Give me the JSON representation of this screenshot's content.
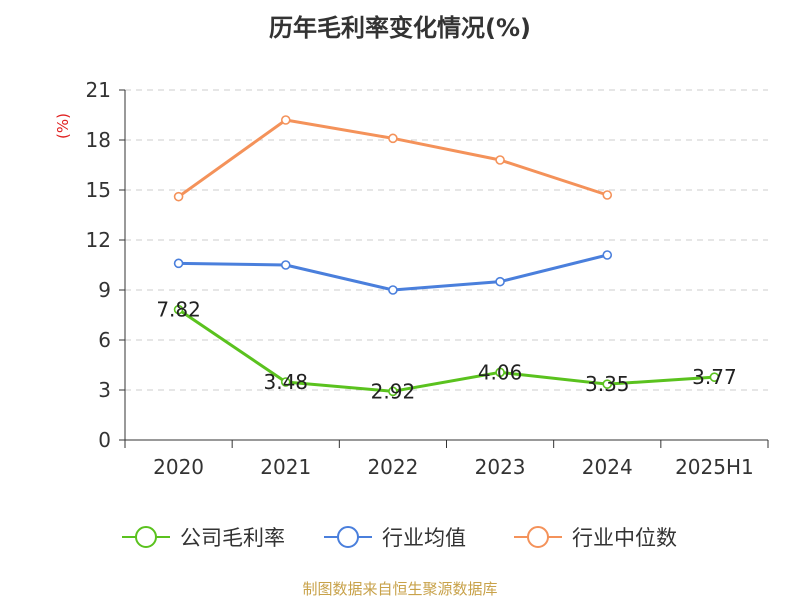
{
  "chart_data": {
    "type": "line",
    "title": "历年毛利率变化情况(%)",
    "ylabel": "(%)",
    "xlabel": "",
    "categories": [
      "2020",
      "2021",
      "2022",
      "2023",
      "2024",
      "2025H1"
    ],
    "ylim": [
      0,
      21
    ],
    "yticks": [
      "0",
      "3",
      "6",
      "9",
      "12",
      "15",
      "18",
      "21"
    ],
    "grid": true,
    "legend_position": "bottom",
    "series": [
      {
        "name": "公司毛利率",
        "color": "#5ac21e",
        "values": [
          7.82,
          3.48,
          2.92,
          4.06,
          3.35,
          3.77
        ],
        "labels": [
          "7.82",
          "3.48",
          "2.92",
          "4.06",
          "3.35",
          "3.77"
        ]
      },
      {
        "name": "行业均值",
        "color": "#4a7fdc",
        "values": [
          10.6,
          10.5,
          9.0,
          9.5,
          11.1,
          null
        ]
      },
      {
        "name": "行业中位数",
        "color": "#f4925a",
        "values": [
          14.6,
          19.2,
          18.1,
          16.8,
          14.7,
          null
        ]
      }
    ]
  },
  "footer": "制图数据来自恒生聚源数据库"
}
